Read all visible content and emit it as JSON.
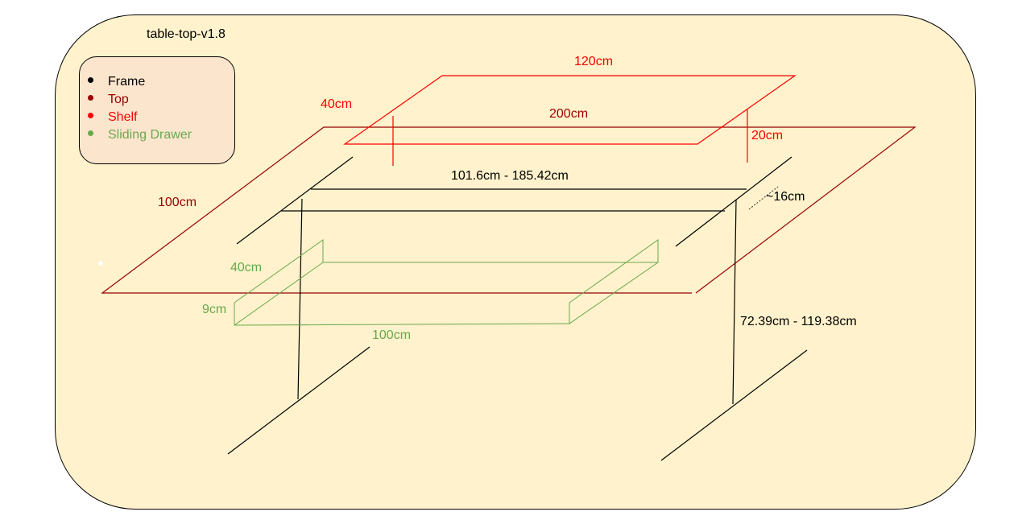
{
  "title": "table-top-v1.8",
  "colors": {
    "frame": "#000000",
    "top": "#990000",
    "shelf": "#ff0000",
    "drawer": "#6aa84f",
    "panel_fill": "#fff2cc",
    "legend_fill": "#fce5cd"
  },
  "legend": [
    {
      "label": "Frame",
      "color": "#000000"
    },
    {
      "label": "Top",
      "color": "#990000"
    },
    {
      "label": "Shelf",
      "color": "#ff0000"
    },
    {
      "label": "Sliding Drawer",
      "color": "#6aa84f"
    }
  ],
  "dimensions": {
    "shelf_width": "120cm",
    "shelf_depth": "40cm",
    "shelf_height": "20cm",
    "top_width": "200cm",
    "top_depth": "100cm",
    "frame_width": "101.6cm - 185.42cm",
    "frame_offset": "~16cm",
    "frame_height": "72.39cm - 119.38cm",
    "drawer_depth": "40cm",
    "drawer_height": "9cm",
    "drawer_width": "100cm"
  }
}
